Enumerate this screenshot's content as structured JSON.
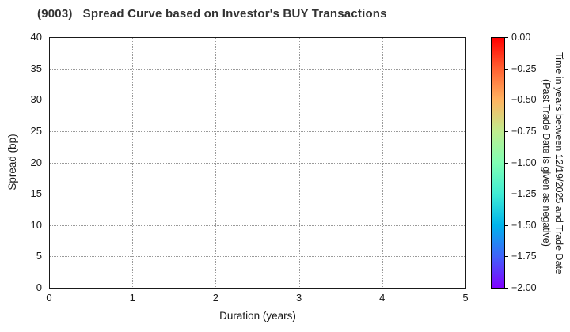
{
  "chart_data": {
    "type": "scatter",
    "title": "(9003)   Spread Curve based on Investor's BUY Transactions",
    "xlabel": "Duration (years)",
    "ylabel": "Spread (bp)",
    "xlim": [
      0,
      5
    ],
    "ylim": [
      0,
      40
    ],
    "x_ticks": [
      0,
      1,
      2,
      3,
      4,
      5
    ],
    "y_ticks": [
      0,
      5,
      10,
      15,
      20,
      25,
      30,
      35,
      40
    ],
    "grid": "dotted",
    "legend": "none",
    "points": [],
    "colorbar": {
      "label_line1": "Time in years between 12/19/2025 and Trade Date",
      "label_line2": "(Past Trade Date is given as negative)",
      "tick_labels": [
        "0.00",
        "−0.25",
        "−0.50",
        "−0.75",
        "−1.00",
        "−1.25",
        "−1.50",
        "−1.75",
        "−2.00"
      ],
      "value_range_top_to_bottom": [
        0.0,
        -2.0
      ],
      "colormap": "rainbow",
      "gradient_stops_top_to_bottom": [
        "#ff0000",
        "#ff6232",
        "#ffb461",
        "#bfec8e",
        "#80ffb4",
        "#40ecd4",
        "#00b4ec",
        "#4062fa",
        "#8000ff"
      ]
    },
    "colors": {
      "title_text": "#333333",
      "axis": "#1a1a1a",
      "grid": "#999999",
      "background": "#ffffff"
    }
  }
}
